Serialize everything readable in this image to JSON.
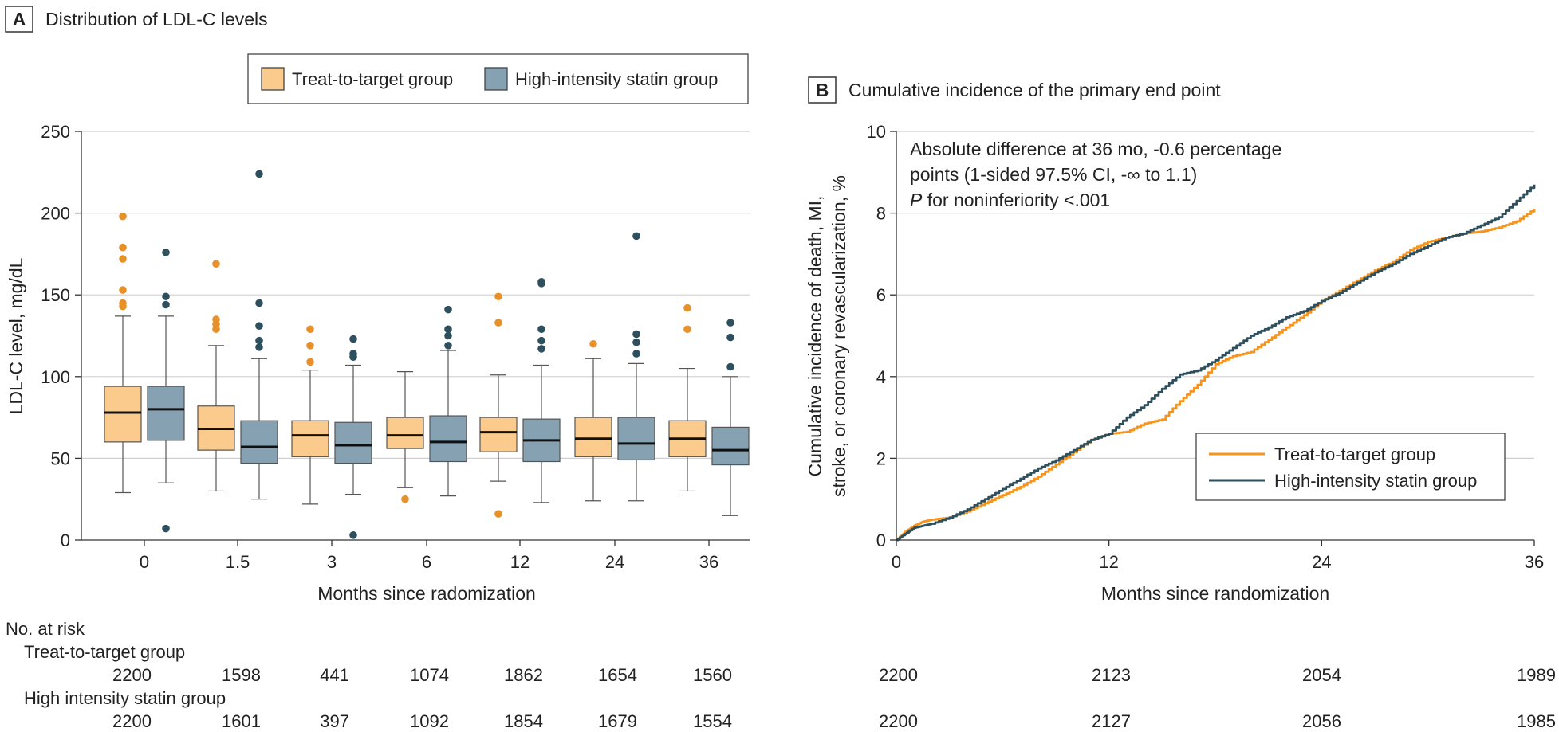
{
  "colors": {
    "treat_box": "#FBCB8D",
    "high_box": "#86A2B2",
    "treat_outlier": "#E8912A",
    "high_outlier": "#2E4F5D",
    "treat_line": "#F7941D",
    "high_line": "#2E4F5D",
    "grid": "#d0d0d0",
    "axis": "#333333"
  },
  "panelA": {
    "badge": "A",
    "title": "Distribution of LDL-C levels",
    "legend": [
      "Treat-to-target group",
      "High-intensity statin group"
    ]
  },
  "panelB": {
    "badge": "B",
    "title": "Cumulative incidence of the primary end point",
    "annotation": {
      "line1": "Absolute difference at 36 mo, -0.6 percentage",
      "line2": "points (1-sided 97.5% CI, -∞ to 1.1)",
      "line3_italic": "P",
      "line3_rest": " for noninferiority <.001"
    },
    "legend": [
      "Treat-to-target group",
      "High-intensity statin group"
    ]
  },
  "risk_table": {
    "header": "No. at risk",
    "group1_label": "Treat-to-target group",
    "group2_label": "High intensity statin group",
    "A_group1": [
      "2200",
      "1598",
      "441",
      "1074",
      "1862",
      "1654",
      "1560"
    ],
    "A_group2": [
      "2200",
      "1601",
      "397",
      "1092",
      "1854",
      "1679",
      "1554"
    ],
    "B_group1": [
      "2200",
      "2123",
      "2054",
      "1989"
    ],
    "B_group2": [
      "2200",
      "2127",
      "2056",
      "1985"
    ]
  },
  "chart_data": [
    {
      "type": "box",
      "title": "Distribution of LDL-C levels",
      "xlabel": "Months since radomization",
      "ylabel": "LDL-C level, mg/dL",
      "ylim": [
        0,
        250
      ],
      "yticks": [
        "0",
        "50",
        "100",
        "150",
        "200",
        "250"
      ],
      "categories": [
        "0",
        "1.5",
        "3",
        "6",
        "12",
        "24",
        "36"
      ],
      "grid": true,
      "legend_position": "top",
      "series": [
        {
          "name": "Treat-to-target group",
          "boxes": [
            {
              "min": 29,
              "q1": 60,
              "median": 78,
              "q3": 94,
              "max": 137,
              "outliers": [
                143,
                145,
                153,
                172,
                179,
                198
              ]
            },
            {
              "min": 30,
              "q1": 55,
              "median": 68,
              "q3": 82,
              "max": 119,
              "outliers": [
                129,
                132,
                135,
                169
              ]
            },
            {
              "min": 22,
              "q1": 51,
              "median": 64,
              "q3": 73,
              "max": 104,
              "outliers": [
                109,
                119,
                129
              ]
            },
            {
              "min": 32,
              "q1": 56,
              "median": 64,
              "q3": 75,
              "max": 103,
              "outliers": [
                25
              ]
            },
            {
              "min": 36,
              "q1": 54,
              "median": 66,
              "q3": 75,
              "max": 101,
              "outliers": [
                16,
                133,
                149
              ]
            },
            {
              "min": 24,
              "q1": 51,
              "median": 62,
              "q3": 75,
              "max": 111,
              "outliers": [
                120
              ]
            },
            {
              "min": 30,
              "q1": 51,
              "median": 62,
              "q3": 73,
              "max": 105,
              "outliers": [
                129,
                142
              ]
            }
          ]
        },
        {
          "name": "High-intensity statin group",
          "boxes": [
            {
              "min": 35,
              "q1": 61,
              "median": 80,
              "q3": 94,
              "max": 137,
              "outliers": [
                7,
                144,
                149,
                176
              ]
            },
            {
              "min": 25,
              "q1": 47,
              "median": 57,
              "q3": 73,
              "max": 111,
              "outliers": [
                118,
                122,
                131,
                145,
                224
              ]
            },
            {
              "min": 28,
              "q1": 47,
              "median": 58,
              "q3": 72,
              "max": 107,
              "outliers": [
                3,
                112,
                114,
                123
              ]
            },
            {
              "min": 27,
              "q1": 48,
              "median": 60,
              "q3": 76,
              "max": 116,
              "outliers": [
                119,
                125,
                129,
                141
              ]
            },
            {
              "min": 23,
              "q1": 48,
              "median": 61,
              "q3": 74,
              "max": 107,
              "outliers": [
                117,
                122,
                129,
                157,
                158
              ]
            },
            {
              "min": 24,
              "q1": 49,
              "median": 59,
              "q3": 75,
              "max": 108,
              "outliers": [
                114,
                121,
                126,
                186
              ]
            },
            {
              "min": 15,
              "q1": 46,
              "median": 55,
              "q3": 69,
              "max": 100,
              "outliers": [
                106,
                124,
                133
              ]
            }
          ]
        }
      ]
    },
    {
      "type": "line",
      "title": "Cumulative incidence of the primary end point",
      "xlabel": "Months since randomization",
      "ylabel_line1": "Cumulative incidence of death, MI,",
      "ylabel_line2": "stroke, or coronary revascularization, %",
      "xlim": [
        0,
        36
      ],
      "ylim": [
        0,
        10
      ],
      "xticks": [
        "0",
        "12",
        "24",
        "36"
      ],
      "yticks": [
        "0",
        "2",
        "4",
        "6",
        "8",
        "10"
      ],
      "grid": true,
      "legend_position": "bottom-right",
      "series": [
        {
          "name": "Treat-to-target group",
          "x": [
            0,
            0.5,
            1,
            1.5,
            2,
            3,
            4,
            5,
            6,
            7,
            8,
            9,
            10,
            11,
            12,
            13,
            14,
            15,
            16,
            17,
            18,
            19,
            20,
            21,
            22,
            23,
            24,
            25,
            26,
            27,
            28,
            29,
            30,
            31,
            32,
            33,
            34,
            35,
            36
          ],
          "y": [
            0,
            0.2,
            0.35,
            0.45,
            0.5,
            0.55,
            0.7,
            0.9,
            1.1,
            1.3,
            1.55,
            1.85,
            2.15,
            2.45,
            2.6,
            2.65,
            2.85,
            2.95,
            3.4,
            3.8,
            4.3,
            4.5,
            4.6,
            4.9,
            5.2,
            5.5,
            5.85,
            6.1,
            6.35,
            6.6,
            6.8,
            7.1,
            7.3,
            7.4,
            7.5,
            7.55,
            7.65,
            7.8,
            8.1
          ]
        },
        {
          "name": "High-intensity statin group",
          "x": [
            0,
            0.5,
            1,
            1.5,
            2,
            3,
            4,
            5,
            6,
            7,
            8,
            9,
            10,
            11,
            12,
            13,
            14,
            15,
            16,
            17,
            18,
            19,
            20,
            21,
            22,
            23,
            24,
            25,
            26,
            27,
            28,
            29,
            30,
            31,
            32,
            33,
            34,
            35,
            36
          ],
          "y": [
            0,
            0.15,
            0.3,
            0.35,
            0.4,
            0.55,
            0.75,
            1.0,
            1.25,
            1.5,
            1.75,
            1.95,
            2.2,
            2.45,
            2.6,
            3.0,
            3.3,
            3.7,
            4.05,
            4.15,
            4.4,
            4.7,
            5.0,
            5.2,
            5.45,
            5.6,
            5.85,
            6.05,
            6.3,
            6.55,
            6.75,
            7.0,
            7.2,
            7.4,
            7.5,
            7.7,
            7.9,
            8.3,
            8.7
          ]
        }
      ]
    }
  ]
}
